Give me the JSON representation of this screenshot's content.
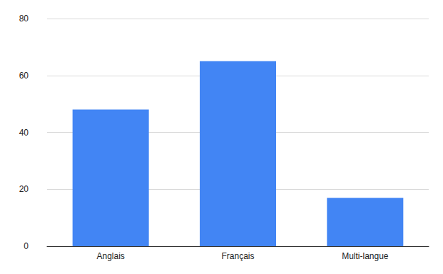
{
  "chart_data": {
    "type": "bar",
    "categories": [
      "Anglais",
      "Français",
      "Multi-langue"
    ],
    "values": [
      48,
      65,
      17
    ],
    "color": "#4285f4",
    "ylim": [
      0,
      80
    ],
    "yticks": [
      0,
      20,
      40,
      60,
      80
    ],
    "grid": true
  }
}
